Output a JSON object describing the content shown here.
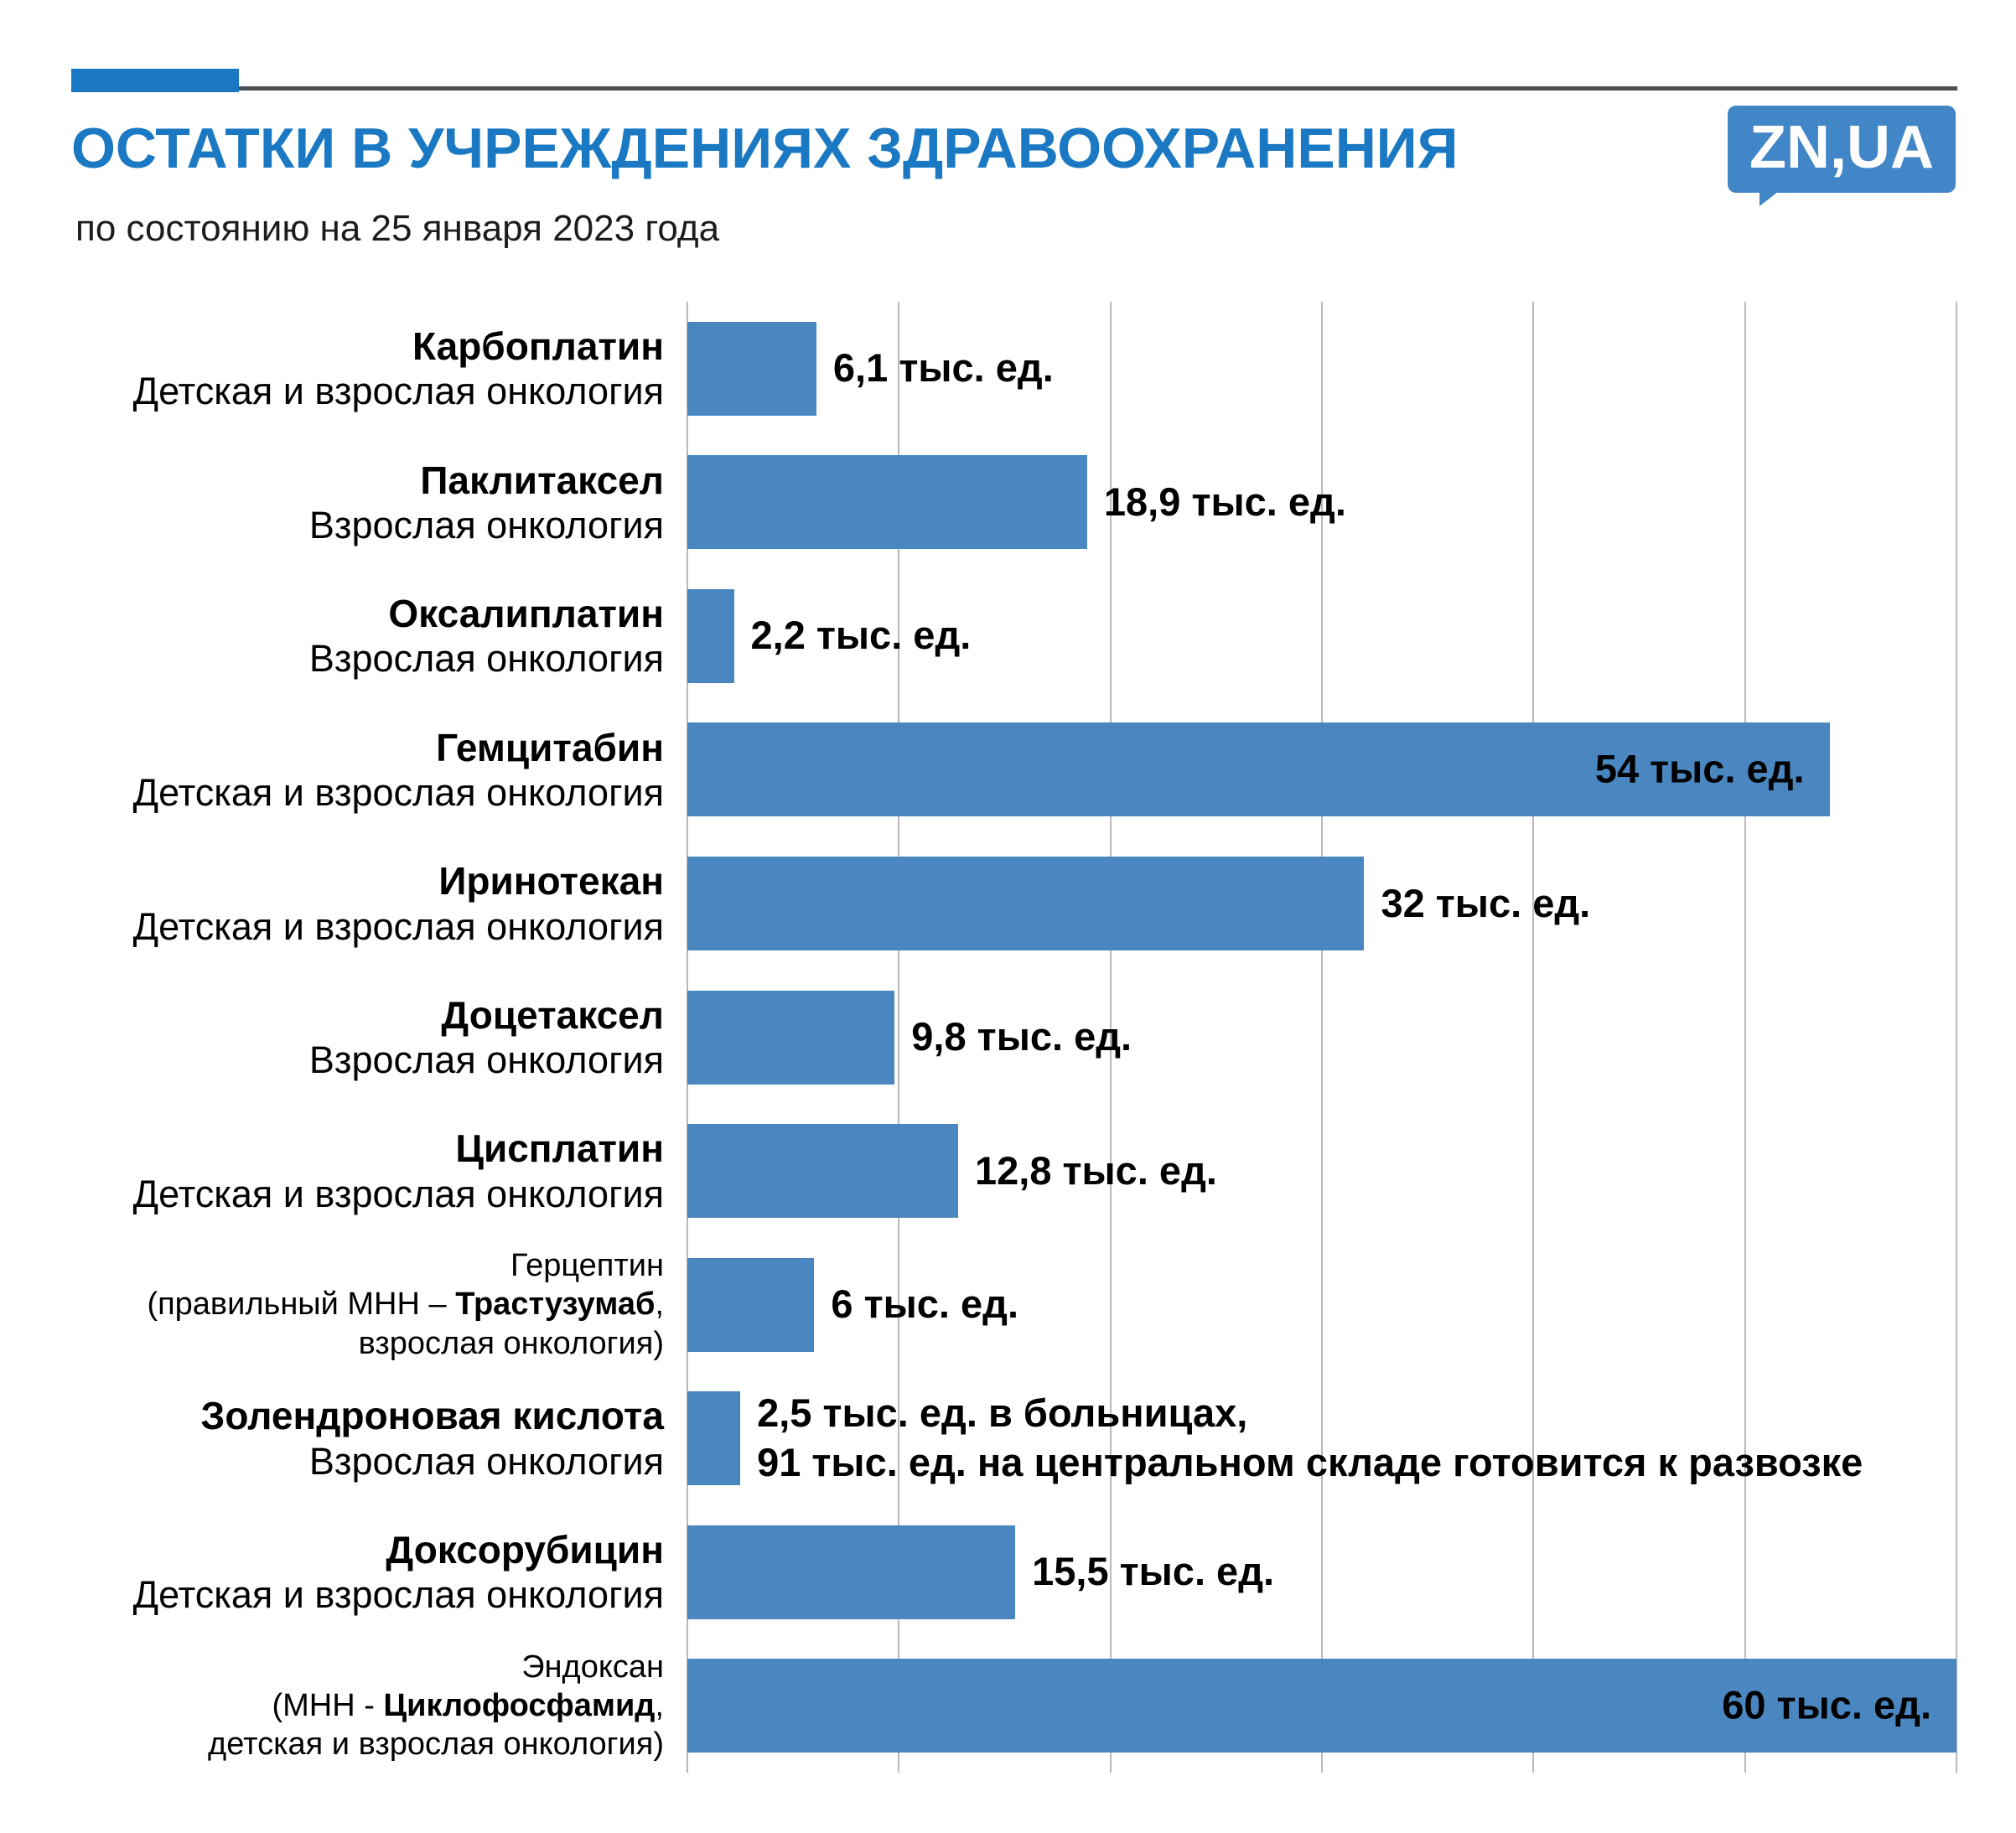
{
  "header": {
    "title": "ОСТАТКИ В УЧРЕЖДЕНИЯХ ЗДРАВООХРАНЕНИЯ",
    "subtitle": "по состоянию на 25 января 2023 года",
    "logo": "ZN,UA"
  },
  "colors": {
    "title_blue": "#1a79c2",
    "bar_blue": "#4a87c1",
    "logo_blue": "#4186c6",
    "grid_gray": "#b9b9b9"
  },
  "chart_data": {
    "type": "bar",
    "orientation": "horizontal",
    "title": "ОСТАТКИ В УЧРЕЖДЕНИЯХ ЗДРАВООХРАНЕНИЯ",
    "subtitle": "по состоянию на 25 января 2023 года",
    "unit": "тыс. ед.",
    "xlim": [
      0,
      60
    ],
    "gridline_step": 10,
    "grid": true,
    "legend": false,
    "categories": [
      "Карбоплатин",
      "Паклитаксел",
      "Оксалиплатин",
      "Гемцитабин",
      "Иринотекан",
      "Доцетаксел",
      "Цисплатин",
      "Герцептин (Трастузумаб)",
      "Золендроновая кислота",
      "Доксорубицин",
      "Эндоксан (Циклофосфамид)"
    ],
    "values": [
      6.1,
      18.9,
      2.2,
      54,
      32,
      9.8,
      12.8,
      6,
      2.5,
      15.5,
      60
    ],
    "rows": [
      {
        "value": 6.1,
        "label_inside": false,
        "small": false,
        "label_lines": [
          [
            {
              "t": "Карбоплатин",
              "b": true
            }
          ],
          [
            {
              "t": "Детская и взрослая онкология",
              "b": false
            }
          ]
        ],
        "value_label": [
          "6,1 тыс. ед."
        ]
      },
      {
        "value": 18.9,
        "label_inside": false,
        "small": false,
        "label_lines": [
          [
            {
              "t": "Паклитаксел",
              "b": true
            }
          ],
          [
            {
              "t": "Взрослая онкология",
              "b": false
            }
          ]
        ],
        "value_label": [
          "18,9 тыс. ед."
        ]
      },
      {
        "value": 2.2,
        "label_inside": false,
        "small": false,
        "label_lines": [
          [
            {
              "t": "Оксалиплатин",
              "b": true
            }
          ],
          [
            {
              "t": "Взрослая онкология",
              "b": false
            }
          ]
        ],
        "value_label": [
          "2,2 тыс. ед."
        ]
      },
      {
        "value": 54,
        "label_inside": true,
        "small": false,
        "label_lines": [
          [
            {
              "t": "Гемцитабин",
              "b": true
            }
          ],
          [
            {
              "t": "Детская и взрослая онкология",
              "b": false
            }
          ]
        ],
        "value_label": [
          "54 тыс. ед."
        ]
      },
      {
        "value": 32,
        "label_inside": false,
        "small": false,
        "label_lines": [
          [
            {
              "t": "Иринотекан",
              "b": true
            }
          ],
          [
            {
              "t": "Детская и взрослая онкология",
              "b": false
            }
          ]
        ],
        "value_label": [
          "32 тыс. ед."
        ]
      },
      {
        "value": 9.8,
        "label_inside": false,
        "small": false,
        "label_lines": [
          [
            {
              "t": "Доцетаксел",
              "b": true
            }
          ],
          [
            {
              "t": "Взрослая онкология",
              "b": false
            }
          ]
        ],
        "value_label": [
          "9,8 тыс. ед."
        ]
      },
      {
        "value": 12.8,
        "label_inside": false,
        "small": false,
        "label_lines": [
          [
            {
              "t": "Цисплатин",
              "b": true
            }
          ],
          [
            {
              "t": "Детская и взрослая онкология",
              "b": false
            }
          ]
        ],
        "value_label": [
          "12,8 тыс. ед."
        ]
      },
      {
        "value": 6,
        "label_inside": false,
        "small": true,
        "label_lines": [
          [
            {
              "t": "Герцептин",
              "b": false
            }
          ],
          [
            {
              "t": "(правильный МНН – ",
              "b": false
            },
            {
              "t": "Трастузумаб",
              "b": true
            },
            {
              "t": ",",
              "b": false
            }
          ],
          [
            {
              "t": "взрослая онкология)",
              "b": false
            }
          ]
        ],
        "value_label": [
          "6 тыс. ед."
        ]
      },
      {
        "value": 2.5,
        "label_inside": false,
        "small": false,
        "label_lines": [
          [
            {
              "t": "Золендроновая кислота",
              "b": true
            }
          ],
          [
            {
              "t": "Взрослая онкология",
              "b": false
            }
          ]
        ],
        "value_label": [
          "2,5 тыс. ед. в больницах,",
          "91 тыс. ед. на центральном складе готовится к развозке"
        ]
      },
      {
        "value": 15.5,
        "label_inside": false,
        "small": false,
        "label_lines": [
          [
            {
              "t": "Доксорубицин",
              "b": true
            }
          ],
          [
            {
              "t": "Детская и взрослая онкология",
              "b": false
            }
          ]
        ],
        "value_label": [
          "15,5 тыс. ед."
        ]
      },
      {
        "value": 60,
        "label_inside": true,
        "small": true,
        "label_lines": [
          [
            {
              "t": "Эндоксан",
              "b": false
            }
          ],
          [
            {
              "t": "(МНН - ",
              "b": false
            },
            {
              "t": "Циклофосфамид",
              "b": true
            },
            {
              "t": ",",
              "b": false
            }
          ],
          [
            {
              "t": "детская и взрослая онкология)",
              "b": false
            }
          ]
        ],
        "value_label": [
          "60 тыс. ед."
        ]
      }
    ]
  }
}
